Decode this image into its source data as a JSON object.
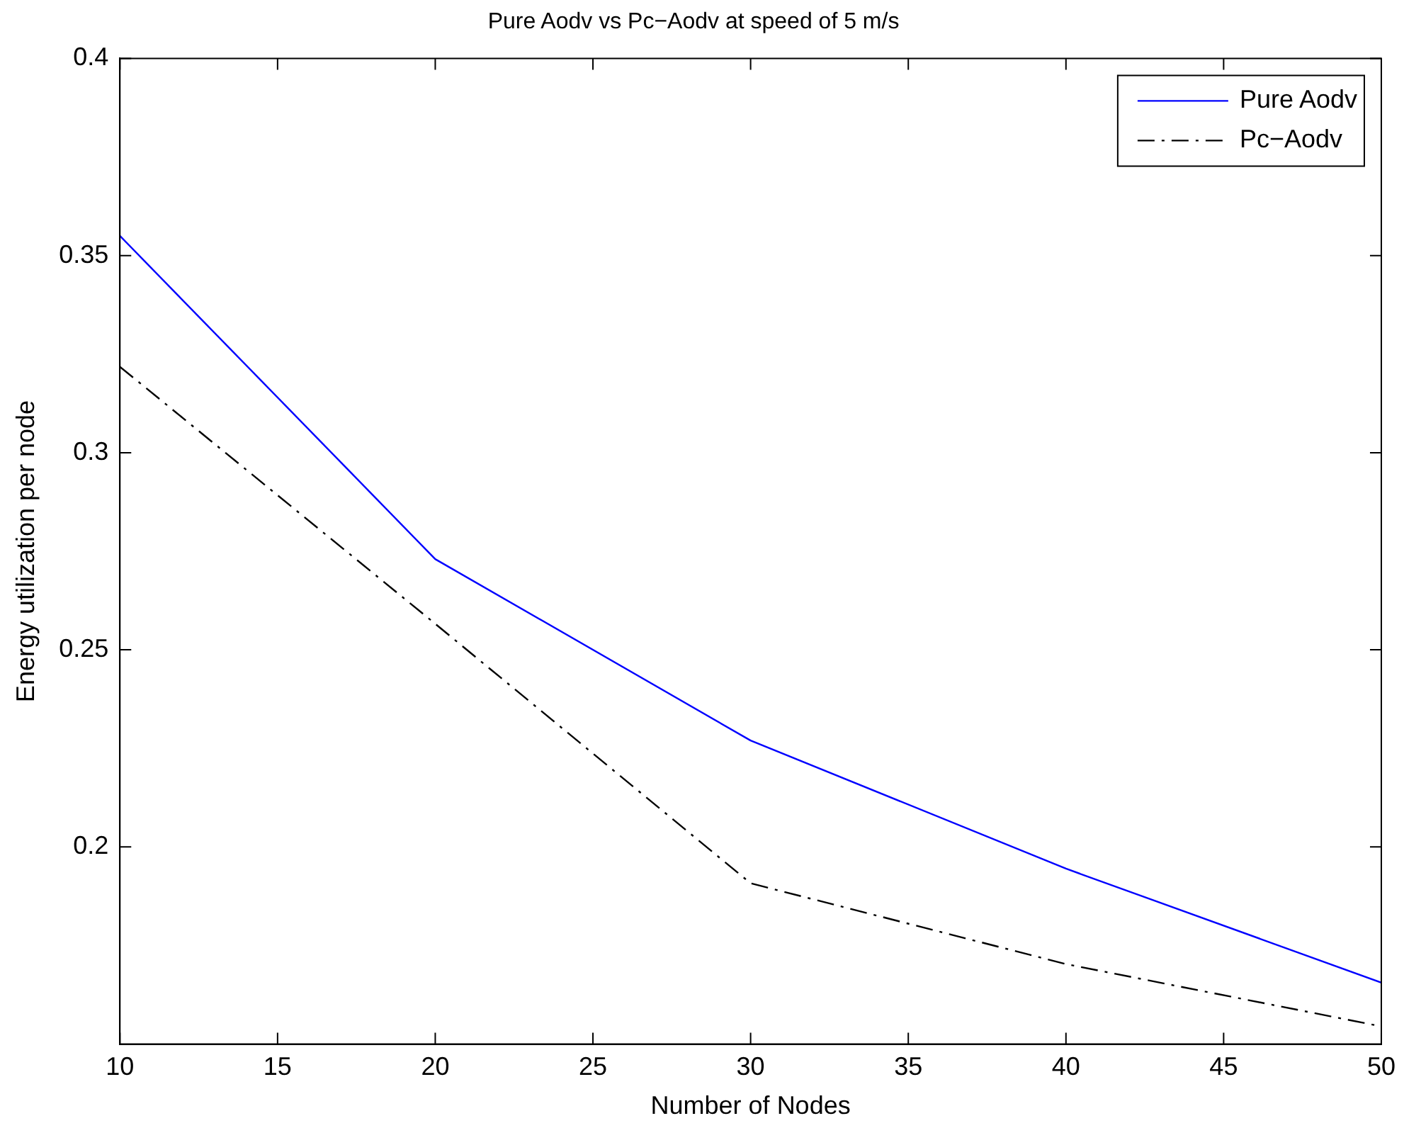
{
  "chart_data": {
    "type": "line",
    "title": "Pure Aodv vs Pc−Aodv at speed of 5 m/s",
    "xlabel": "Number of Nodes",
    "ylabel": "Energy utilization per node",
    "x": [
      10,
      20,
      30,
      40,
      50
    ],
    "series": [
      {
        "name": "Pure Aodv",
        "color": "#0000ff",
        "line_style": "solid",
        "values": [
          0.355,
          0.273,
          0.227,
          0.1945,
          0.1656
        ]
      },
      {
        "name": "Pc−Aodv",
        "color": "#000000",
        "line_style": "dashed",
        "values": [
          0.3218,
          0.2566,
          0.1908,
          0.1703,
          0.1545
        ]
      }
    ],
    "xlim": [
      10,
      50
    ],
    "xticks": [
      10,
      15,
      20,
      25,
      30,
      35,
      40,
      45,
      50
    ],
    "ylim": [
      0.15,
      0.4
    ],
    "yticks": [
      0.2,
      0.25,
      0.3,
      0.35,
      0.4
    ],
    "grid": false,
    "legend": "top right",
    "marker": "none"
  }
}
